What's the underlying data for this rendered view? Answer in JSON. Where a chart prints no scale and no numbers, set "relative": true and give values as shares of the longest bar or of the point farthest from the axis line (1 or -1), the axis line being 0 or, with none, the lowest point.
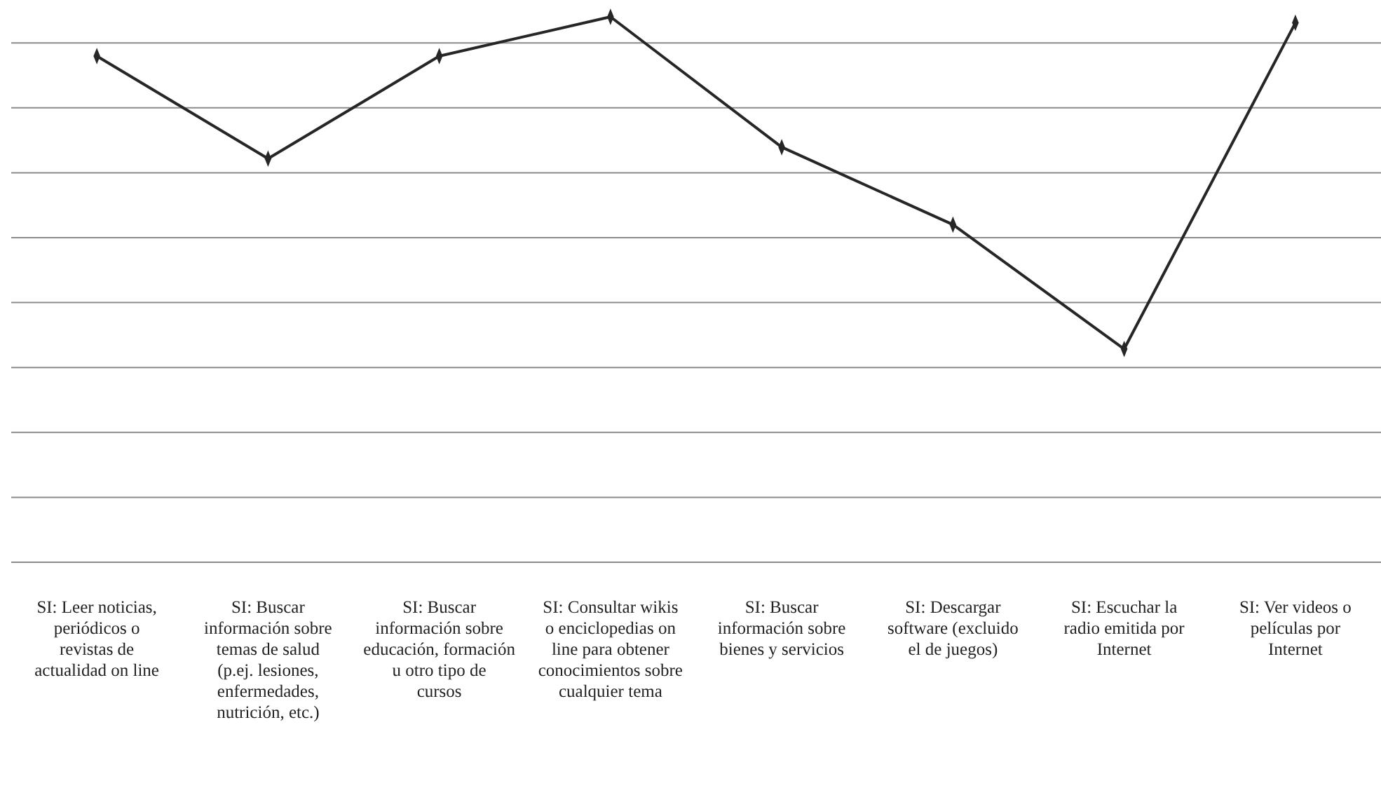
{
  "chart_data": {
    "type": "line",
    "relative": true,
    "grid": true,
    "marker": "diamond",
    "line_style": "solid",
    "categories": [
      "SI: Leer noticias, periódicos o revistas de actualidad on line",
      "SI: Buscar información sobre temas de salud (p.ej. lesiones, enfermedades, nutrición, etc.)",
      "SI: Buscar información sobre educación, formación u otro tipo de cursos",
      "SI: Consultar wikis o enciclopedias on line para obtener conocimientos sobre cualquier tema",
      "SI: Buscar información sobre bienes y servicios",
      "SI: Descargar software (excluido el de juegos)",
      "SI: Escuchar la radio emitida por Internet",
      "SI: Ver videos o películas por Internet"
    ],
    "series": [
      {
        "color": "#262626",
        "values": [
          0.928,
          0.74,
          0.928,
          1,
          0.761,
          0.619,
          0.391,
          0.989
        ]
      }
    ]
  }
}
